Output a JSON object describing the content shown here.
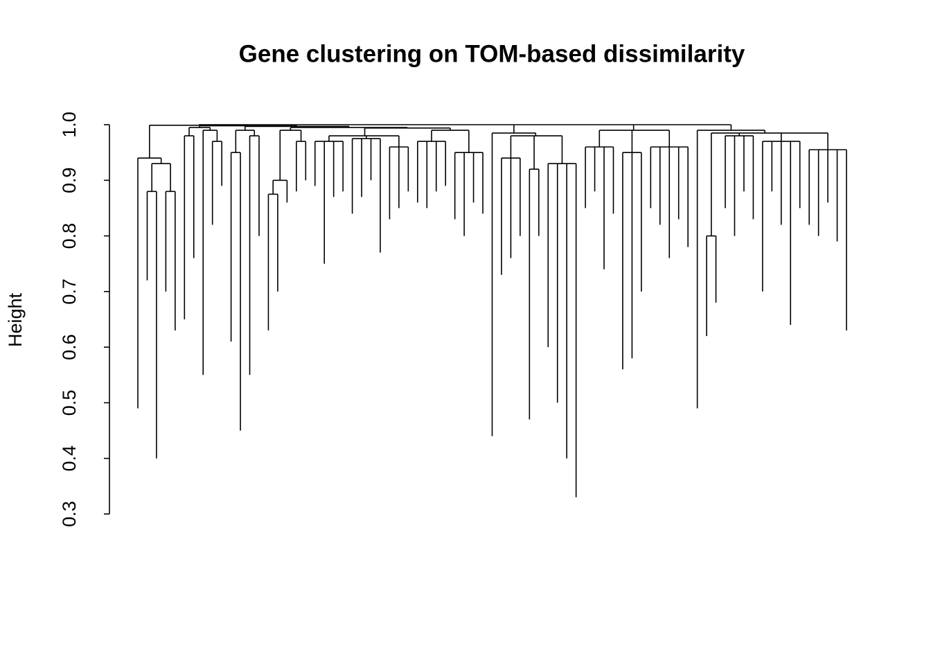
{
  "chart_data": {
    "type": "dendrogram",
    "title": "Gene clustering on TOM-based dissimilarity",
    "ylabel": "Height",
    "ylim": [
      0.3,
      1
    ],
    "yticks": [
      0.3,
      0.4,
      0.5,
      0.6,
      0.7,
      0.8,
      0.9,
      {
        "value": 1,
        "label": "1.0"
      }
    ],
    "color": "#000000",
    "tree": {
      "height": 1,
      "children": [
        {
          "height": 0.999,
          "children": [
            {
              "height": 0.94,
              "children": [
                0.49,
                {
                  "height": 0.93,
                  "children": [
                    {
                      "height": 0.88,
                      "children": [
                        0.72,
                        0.4
                      ]
                    },
                    {
                      "height": 0.88,
                      "children": [
                        0.7,
                        0.63
                      ]
                    }
                  ]
                }
              ]
            },
            {
              "height": 0.998,
              "children": [
                {
                  "height": 0.995,
                  "children": [
                    {
                      "height": 0.98,
                      "children": [
                        0.65,
                        0.76
                      ]
                    },
                    {
                      "height": 0.99,
                      "children": [
                        0.55,
                        {
                          "height": 0.97,
                          "children": [
                            0.82,
                            0.89
                          ]
                        }
                      ]
                    }
                  ]
                },
                {
                  "height": 0.997,
                  "children": [
                    {
                      "height": 0.99,
                      "children": [
                        {
                          "height": 0.95,
                          "children": [
                            0.61,
                            0.45
                          ]
                        },
                        {
                          "height": 0.98,
                          "children": [
                            0.55,
                            0.8
                          ]
                        }
                      ]
                    },
                    {
                      "height": 0.995,
                      "children": [
                        {
                          "height": 0.99,
                          "children": [
                            {
                              "height": 0.9,
                              "children": [
                                {
                                  "height": 0.875,
                                  "children": [
                                    0.63,
                                    0.7
                                  ]
                                },
                                0.86
                              ]
                            },
                            {
                              "height": 0.97,
                              "children": [
                                0.88,
                                0.9
                              ]
                            }
                          ]
                        },
                        {
                          "height": 0.994,
                          "children": [
                            {
                              "height": 0.98,
                              "children": [
                                {
                                  "height": 0.97,
                                  "children": [
                                    0.89,
                                    0.75,
                                    0.87,
                                    0.88
                                  ]
                                },
                                {
                                  "height": 0.975,
                                  "children": [
                                    0.84,
                                    0.87,
                                    0.9,
                                    0.77
                                  ]
                                },
                                {
                                  "height": 0.96,
                                  "children": [
                                    0.83,
                                    0.85,
                                    0.88
                                  ]
                                }
                              ]
                            },
                            {
                              "height": 0.99,
                              "children": [
                                {
                                  "height": 0.97,
                                  "children": [
                                    0.86,
                                    0.85,
                                    0.88,
                                    0.89
                                  ]
                                },
                                {
                                  "height": 0.95,
                                  "children": [
                                    0.83,
                                    0.8,
                                    0.86,
                                    0.84
                                  ]
                                }
                              ]
                            }
                          ]
                        }
                      ]
                    }
                  ]
                }
              ]
            }
          ]
        },
        {
          "height": 0.985,
          "children": [
            0.44,
            {
              "height": 0.98,
              "children": [
                {
                  "height": 0.94,
                  "children": [
                    0.73,
                    0.76,
                    0.8
                  ]
                },
                {
                  "height": 0.92,
                  "children": [
                    0.47,
                    0.8
                  ]
                },
                {
                  "height": 0.93,
                  "children": [
                    0.6,
                    0.5,
                    0.4,
                    0.33
                  ]
                }
              ]
            }
          ]
        },
        {
          "height": 0.99,
          "children": [
            {
              "height": 0.96,
              "children": [
                0.85,
                0.88,
                0.74,
                0.84
              ]
            },
            {
              "height": 0.95,
              "children": [
                0.56,
                0.58,
                0.7
              ]
            },
            {
              "height": 0.96,
              "children": [
                0.85,
                0.82,
                0.76,
                0.83,
                0.78
              ]
            }
          ]
        },
        {
          "height": 0.99,
          "children": [
            0.49,
            {
              "height": 0.985,
              "children": [
                {
                  "height": 0.8,
                  "children": [
                    0.62,
                    0.68
                  ]
                },
                {
                  "height": 0.98,
                  "children": [
                    0.85,
                    0.8,
                    0.88,
                    0.83
                  ]
                },
                {
                  "height": 0.97,
                  "children": [
                    0.7,
                    0.88,
                    0.82,
                    0.64,
                    0.85
                  ]
                },
                {
                  "height": 0.955,
                  "children": [
                    0.82,
                    0.8,
                    0.86,
                    0.79,
                    0.63
                  ]
                }
              ]
            }
          ]
        }
      ]
    }
  }
}
